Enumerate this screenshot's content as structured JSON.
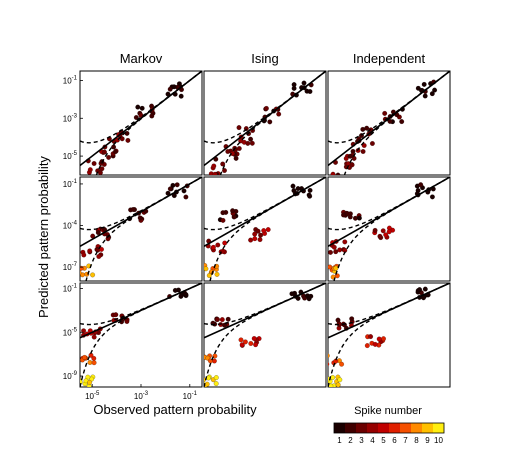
{
  "figure": {
    "column_titles": [
      "Markov",
      "Ising",
      "Independent"
    ],
    "ylabel": "Predicted pattern probability",
    "xlabel": "Observed pattern probability",
    "colorbar_title": "Spike number",
    "colorbar_labels": [
      "1",
      "2",
      "3",
      "4",
      "5",
      "6",
      "7",
      "8",
      "9",
      "10"
    ],
    "colorbar_colors": [
      "#1a0000",
      "#400000",
      "#6b0000",
      "#960000",
      "#c00000",
      "#e02000",
      "#f55000",
      "#ff8a00",
      "#ffc000",
      "#ffee10"
    ]
  },
  "chart_data": [
    {
      "type": "scatter",
      "row": 1,
      "column": "Markov",
      "x_log10_range": [
        -5.5,
        -0.5
      ],
      "y_log10_range": [
        -6,
        -0.5
      ],
      "y_tick_labels": [
        "10^-1",
        "10^-3",
        "10^-5"
      ],
      "x_tick_labels": [],
      "overlays": [
        "solid identity line",
        "dashed lower confidence curve",
        "dashed upper confidence curve"
      ],
      "point_clusters": [
        {
          "x_log10": -4.9,
          "y_log10": -5.6,
          "spike_number": 3
        },
        {
          "x_log10": -4.4,
          "y_log10": -4.7,
          "spike_number": 3
        },
        {
          "x_log10": -3.9,
          "y_log10": -3.9,
          "spike_number": 3
        },
        {
          "x_log10": -2.8,
          "y_log10": -2.8,
          "spike_number": 2
        },
        {
          "x_log10": -1.5,
          "y_log10": -1.5,
          "spike_number": 1
        }
      ]
    },
    {
      "type": "scatter",
      "row": 1,
      "column": "Ising",
      "x_log10_range": [
        -5.5,
        -0.5
      ],
      "y_log10_range": [
        -6,
        -0.5
      ],
      "y_tick_labels": [],
      "x_tick_labels": [],
      "overlays": [
        "solid identity line",
        "dashed lower confidence curve",
        "dashed upper confidence curve"
      ],
      "point_clusters": [
        {
          "x_log10": -4.9,
          "y_log10": -5.6,
          "spike_number": 3
        },
        {
          "x_log10": -4.4,
          "y_log10": -4.7,
          "spike_number": 3
        },
        {
          "x_log10": -3.9,
          "y_log10": -3.9,
          "spike_number": 3
        },
        {
          "x_log10": -2.8,
          "y_log10": -2.8,
          "spike_number": 2
        },
        {
          "x_log10": -1.5,
          "y_log10": -1.5,
          "spike_number": 1
        }
      ]
    },
    {
      "type": "scatter",
      "row": 1,
      "column": "Independent",
      "x_log10_range": [
        -5.5,
        -0.5
      ],
      "y_log10_range": [
        -6,
        -0.5
      ],
      "y_tick_labels": [],
      "x_tick_labels": [],
      "overlays": [
        "solid identity line",
        "dashed lower confidence curve",
        "dashed upper confidence curve"
      ],
      "point_clusters": [
        {
          "x_log10": -4.9,
          "y_log10": -5.6,
          "spike_number": 3
        },
        {
          "x_log10": -4.4,
          "y_log10": -4.7,
          "spike_number": 3
        },
        {
          "x_log10": -3.9,
          "y_log10": -3.9,
          "spike_number": 3
        },
        {
          "x_log10": -2.8,
          "y_log10": -2.8,
          "spike_number": 2
        },
        {
          "x_log10": -1.5,
          "y_log10": -1.5,
          "spike_number": 1
        }
      ]
    },
    {
      "type": "scatter",
      "row": 2,
      "column": "Markov",
      "x_log10_range": [
        -5.5,
        -0.5
      ],
      "y_log10_range": [
        -8,
        -0.5
      ],
      "y_tick_labels": [
        "10^-1",
        "10^-4",
        "10^-7"
      ],
      "x_tick_labels": [],
      "overlays": [
        "solid identity line",
        "dashed lower confidence curve",
        "dashed upper confidence curve"
      ],
      "point_clusters": [
        {
          "x_log10": -5.3,
          "y_log10": -7.3,
          "spike_number": 8
        },
        {
          "x_log10": -5.0,
          "y_log10": -5.8,
          "spike_number": 4
        },
        {
          "x_log10": -4.6,
          "y_log10": -4.6,
          "spike_number": 3
        },
        {
          "x_log10": -3.2,
          "y_log10": -3.2,
          "spike_number": 2
        },
        {
          "x_log10": -1.5,
          "y_log10": -1.5,
          "spike_number": 1
        }
      ]
    },
    {
      "type": "scatter",
      "row": 2,
      "column": "Ising",
      "x_log10_range": [
        -5.5,
        -0.5
      ],
      "y_log10_range": [
        -8,
        -0.5
      ],
      "y_tick_labels": [],
      "x_tick_labels": [],
      "overlays": [
        "solid identity line",
        "dashed lower confidence curve",
        "dashed upper confidence curve"
      ],
      "point_clusters": [
        {
          "x_log10": -5.3,
          "y_log10": -7.3,
          "spike_number": 8
        },
        {
          "x_log10": -5.0,
          "y_log10": -5.5,
          "spike_number": 4
        },
        {
          "x_log10": -4.5,
          "y_log10": -3.2,
          "spike_number": 2
        },
        {
          "x_log10": -3.2,
          "y_log10": -4.6,
          "spike_number": 4
        },
        {
          "x_log10": -1.5,
          "y_log10": -1.5,
          "spike_number": 1
        }
      ]
    },
    {
      "type": "scatter",
      "row": 2,
      "column": "Independent",
      "x_log10_range": [
        -5.5,
        -0.5
      ],
      "y_log10_range": [
        -8,
        -0.5
      ],
      "y_tick_labels": [],
      "x_tick_labels": [],
      "overlays": [
        "solid identity line",
        "dashed lower confidence curve",
        "dashed upper confidence curve"
      ],
      "point_clusters": [
        {
          "x_log10": -5.3,
          "y_log10": -7.3,
          "spike_number": 8
        },
        {
          "x_log10": -5.0,
          "y_log10": -5.5,
          "spike_number": 4
        },
        {
          "x_log10": -4.5,
          "y_log10": -3.2,
          "spike_number": 2
        },
        {
          "x_log10": -3.2,
          "y_log10": -4.6,
          "spike_number": 4
        },
        {
          "x_log10": -1.5,
          "y_log10": -1.5,
          "spike_number": 1
        }
      ]
    },
    {
      "type": "scatter",
      "row": 3,
      "column": "Markov",
      "x_log10_range": [
        -5.5,
        -0.5
      ],
      "y_log10_range": [
        -10,
        -0.5
      ],
      "y_tick_labels": [
        "10^-1",
        "10^-5",
        "10^-9"
      ],
      "x_tick_labels": [
        "10^-5",
        "10^-3",
        "10^-1"
      ],
      "overlays": [
        "solid identity line",
        "dashed lower confidence curve",
        "dashed upper confidence curve"
      ],
      "point_clusters": [
        {
          "x_log10": -5.35,
          "y_log10": -9.5,
          "spike_number": 10
        },
        {
          "x_log10": -5.3,
          "y_log10": -7.5,
          "spike_number": 7
        },
        {
          "x_log10": -5.0,
          "y_log10": -5.0,
          "spike_number": 4
        },
        {
          "x_log10": -3.8,
          "y_log10": -3.8,
          "spike_number": 3
        },
        {
          "x_log10": -1.5,
          "y_log10": -1.5,
          "spike_number": 1
        }
      ]
    },
    {
      "type": "scatter",
      "row": 3,
      "column": "Ising",
      "x_log10_range": [
        -5.5,
        -0.5
      ],
      "y_log10_range": [
        -10,
        -0.5
      ],
      "y_tick_labels": [],
      "x_tick_labels": [],
      "overlays": [
        "solid identity line",
        "dashed lower confidence curve",
        "dashed upper confidence curve"
      ],
      "point_clusters": [
        {
          "x_log10": -5.35,
          "y_log10": -9.5,
          "spike_number": 10
        },
        {
          "x_log10": -5.3,
          "y_log10": -7.5,
          "spike_number": 7
        },
        {
          "x_log10": -4.8,
          "y_log10": -4.2,
          "spike_number": 3
        },
        {
          "x_log10": -3.6,
          "y_log10": -5.8,
          "spike_number": 5
        },
        {
          "x_log10": -1.5,
          "y_log10": -1.5,
          "spike_number": 1
        }
      ]
    },
    {
      "type": "scatter",
      "row": 3,
      "column": "Independent",
      "x_log10_range": [
        -5.5,
        -0.5
      ],
      "y_log10_range": [
        -10,
        -0.5
      ],
      "y_tick_labels": [],
      "x_tick_labels": [],
      "overlays": [
        "solid identity line",
        "dashed lower confidence curve",
        "dashed upper confidence curve"
      ],
      "point_clusters": [
        {
          "x_log10": -5.35,
          "y_log10": -9.5,
          "spike_number": 10
        },
        {
          "x_log10": -5.3,
          "y_log10": -7.5,
          "spike_number": 7
        },
        {
          "x_log10": -4.8,
          "y_log10": -4.2,
          "spike_number": 3
        },
        {
          "x_log10": -3.6,
          "y_log10": -5.8,
          "spike_number": 5
        },
        {
          "x_log10": -1.5,
          "y_log10": -1.5,
          "spike_number": 1
        }
      ]
    }
  ]
}
